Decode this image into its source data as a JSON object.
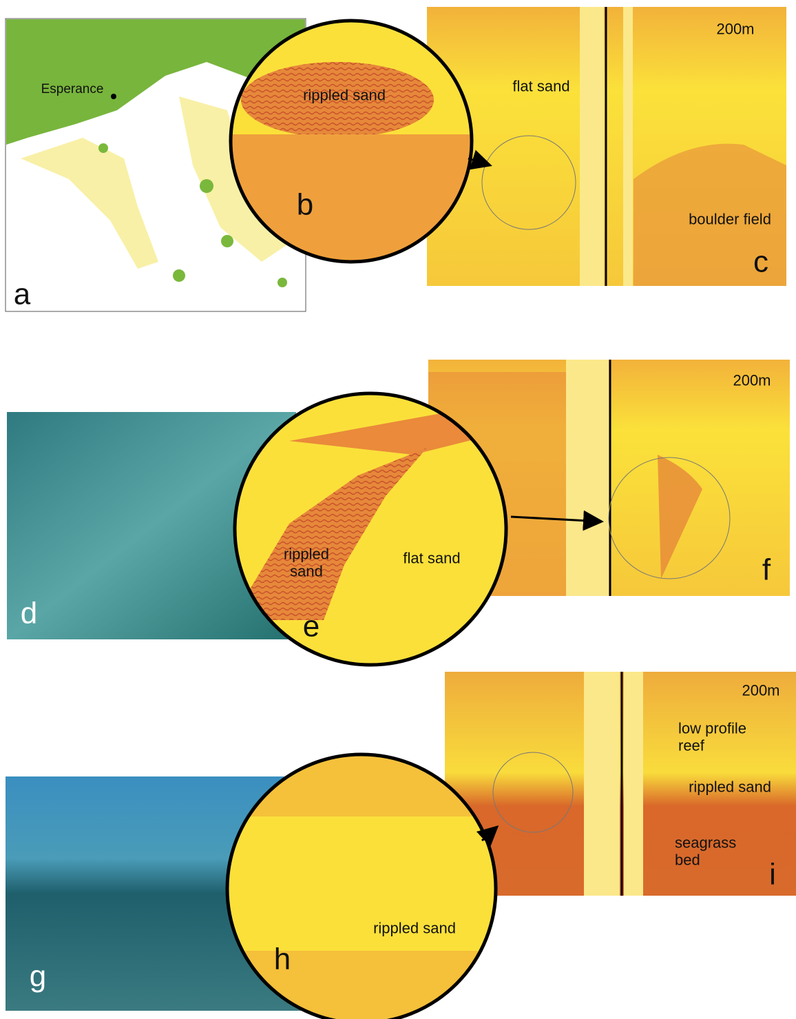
{
  "panels": [
    {
      "label": "a",
      "annotations": [
        "Esperance"
      ]
    },
    {
      "label": "b",
      "annotations": [
        "rippled sand"
      ]
    },
    {
      "label": "c",
      "annotations": [
        "200m",
        "flat sand",
        "boulder field"
      ]
    },
    {
      "label": "d"
    },
    {
      "label": "e",
      "annotations": [
        "rippled sand",
        "flat sand"
      ]
    },
    {
      "label": "f",
      "annotations": [
        "200m"
      ]
    },
    {
      "label": "g"
    },
    {
      "label": "h",
      "annotations": [
        "rippled sand"
      ]
    },
    {
      "label": "i",
      "annotations": [
        "200m",
        "low profile reef",
        "rippled sand",
        "seagrass bed"
      ]
    }
  ]
}
